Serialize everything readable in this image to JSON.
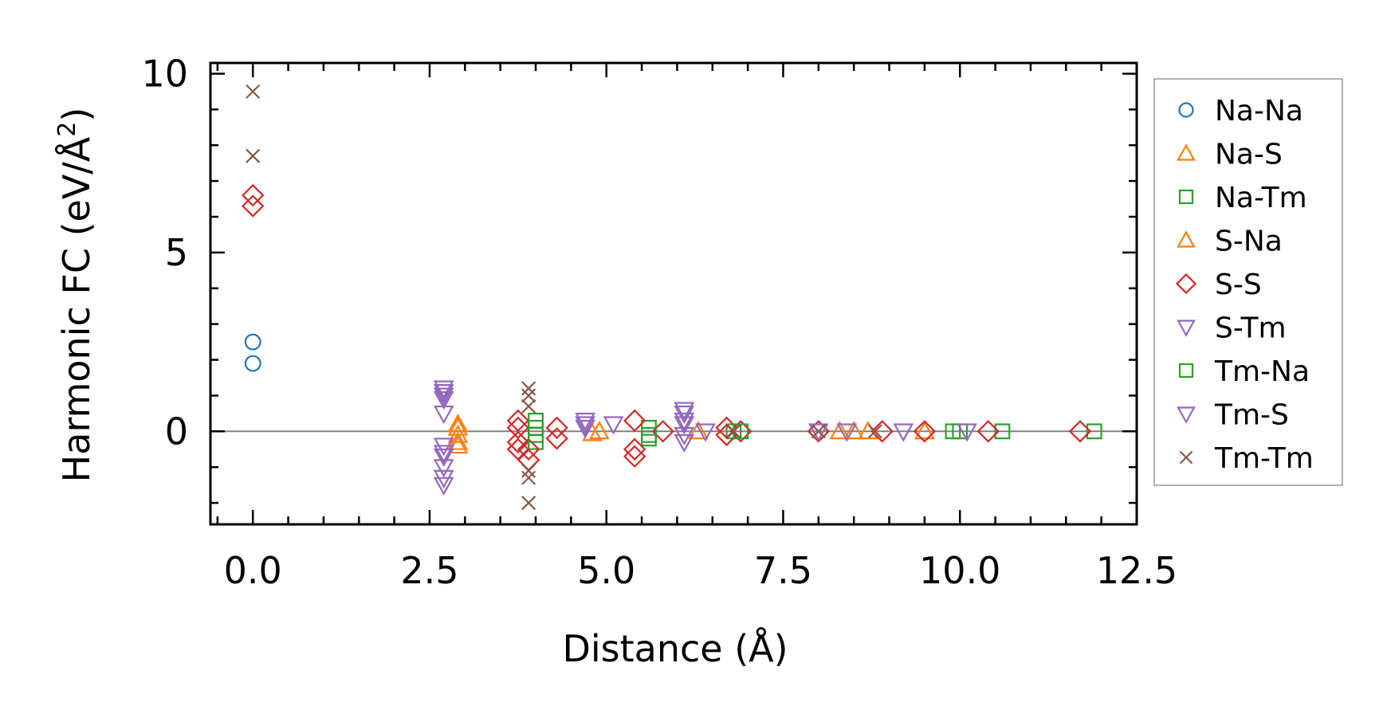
{
  "chart_data": {
    "type": "scatter",
    "title": "",
    "xlabel": "Distance (Å)",
    "ylabel": "Harmonic FC (eV/Å²)",
    "ylabel_base": "Harmonic FC (eV/Å",
    "ylabel_sup": "2",
    "ylabel_close": ")",
    "xlim": [
      -0.6,
      12.5
    ],
    "ylim": [
      -2.6,
      10.3
    ],
    "xticks": [
      0.0,
      2.5,
      5.0,
      7.5,
      10.0,
      12.5
    ],
    "xtick_labels": [
      "0.0",
      "2.5",
      "5.0",
      "7.5",
      "10.0",
      "12.5"
    ],
    "yticks": [
      0,
      5,
      10
    ],
    "ytick_labels": [
      "0",
      "5",
      "10"
    ],
    "zero_line": 0,
    "legend_position": "outside-right",
    "series": [
      {
        "name": "Na-Na",
        "marker": "circle",
        "color": "#1f77b4",
        "x": [
          0,
          0
        ],
        "y": [
          2.5,
          1.9
        ]
      },
      {
        "name": "Na-S",
        "marker": "triangle-up",
        "color": "#ff7f0e",
        "x": [
          2.9,
          2.9,
          2.9,
          4.9,
          8.3,
          8.7
        ],
        "y": [
          0.2,
          -0.1,
          -0.4,
          0.0,
          0.0,
          0.0
        ]
      },
      {
        "name": "Na-Tm",
        "marker": "square",
        "color": "#2ca02c",
        "x": [
          4.0,
          4.0,
          5.6,
          5.6,
          6.8,
          9.9,
          10.6,
          11.9
        ],
        "y": [
          0.3,
          -0.3,
          0.1,
          -0.2,
          0.0,
          0.0,
          0.0,
          0.0
        ]
      },
      {
        "name": "S-Na",
        "marker": "triangle-up",
        "color": "#ff7f0e",
        "x": [
          2.9,
          2.9,
          4.8,
          6.3,
          8.5,
          9.5
        ],
        "y": [
          0.1,
          -0.3,
          -0.05,
          0.0,
          0.0,
          0.0
        ]
      },
      {
        "name": "S-S",
        "marker": "diamond",
        "color": "#d62728",
        "x": [
          0,
          0,
          3.75,
          3.75,
          3.75,
          3.75,
          3.9,
          3.9,
          4.3,
          4.3,
          5.4,
          5.4,
          5.4,
          5.8,
          6.7,
          6.7,
          6.9,
          8.0,
          8.9,
          9.5,
          10.4,
          11.7
        ],
        "y": [
          6.6,
          6.3,
          0.3,
          0.1,
          -0.3,
          -0.5,
          -0.5,
          -0.8,
          0.1,
          -0.2,
          0.3,
          -0.5,
          -0.7,
          0.0,
          0.1,
          -0.1,
          0.0,
          0.0,
          0.0,
          0.0,
          0.0,
          0.0
        ]
      },
      {
        "name": "S-Tm",
        "marker": "triangle-down",
        "color": "#9467bd",
        "x": [
          2.7,
          2.7,
          2.7,
          2.7,
          2.7,
          2.7,
          2.7,
          4.7,
          4.7,
          5.1,
          6.1,
          6.1,
          6.4,
          8.4,
          9.2
        ],
        "y": [
          1.2,
          1.0,
          0.5,
          -0.4,
          -0.7,
          -1.0,
          -1.5,
          0.3,
          0.1,
          0.2,
          0.6,
          0.2,
          0.0,
          0.0,
          0.0
        ]
      },
      {
        "name": "Tm-Na",
        "marker": "square",
        "color": "#2ca02c",
        "x": [
          4.0,
          4.0,
          5.6,
          6.9,
          10.0
        ],
        "y": [
          0.1,
          -0.1,
          -0.1,
          0.0,
          0.0
        ]
      },
      {
        "name": "Tm-S",
        "marker": "triangle-down",
        "color": "#9467bd",
        "x": [
          2.7,
          2.7,
          2.7,
          2.7,
          4.7,
          6.1,
          6.1,
          6.1,
          6.1,
          8.0,
          10.1
        ],
        "y": [
          1.1,
          0.9,
          -0.6,
          -1.3,
          0.2,
          0.5,
          0.3,
          -0.1,
          -0.3,
          0.0,
          0.0
        ]
      },
      {
        "name": "Tm-Tm",
        "marker": "x",
        "color": "#8c564b",
        "x": [
          0,
          0,
          3.9,
          3.9,
          3.9,
          3.9,
          3.9,
          3.9,
          6.8,
          8.0,
          8.8
        ],
        "y": [
          9.5,
          7.7,
          1.2,
          1.0,
          0.7,
          -1.3,
          -1.1,
          -2.0,
          0.0,
          0.0,
          0.0
        ]
      }
    ],
    "legend": [
      {
        "label": "Na-Na",
        "marker": "circle",
        "color": "#1f77b4"
      },
      {
        "label": "Na-S",
        "marker": "triangle-up",
        "color": "#ff7f0e"
      },
      {
        "label": "Na-Tm",
        "marker": "square",
        "color": "#2ca02c"
      },
      {
        "label": "S-Na",
        "marker": "triangle-up",
        "color": "#ff7f0e"
      },
      {
        "label": "S-S",
        "marker": "diamond",
        "color": "#d62728"
      },
      {
        "label": "S-Tm",
        "marker": "triangle-down",
        "color": "#9467bd"
      },
      {
        "label": "Tm-Na",
        "marker": "square",
        "color": "#2ca02c"
      },
      {
        "label": "Tm-S",
        "marker": "triangle-down",
        "color": "#9467bd"
      },
      {
        "label": "Tm-Tm",
        "marker": "x",
        "color": "#8c564b"
      }
    ]
  }
}
